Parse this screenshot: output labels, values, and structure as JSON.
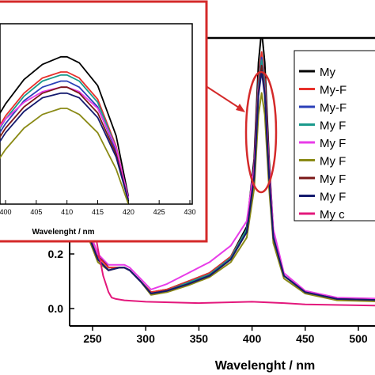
{
  "chart_data": [
    {
      "type": "line",
      "role": "main",
      "xlabel": "Wavelenght / nm",
      "ylabel": "",
      "xlim": [
        225,
        530
      ],
      "ylim": [
        -0.08,
        1.2
      ],
      "x_ticks": [
        250,
        300,
        350,
        400,
        450,
        500
      ],
      "y_ticks": [
        0.0,
        0.2
      ],
      "y_tick_labels": [
        "0.0",
        "0.2"
      ],
      "legend_position": "right",
      "series": [
        {
          "name": "My",
          "color": "#000000",
          "x": [
            225,
            235,
            245,
            255,
            265,
            275,
            280,
            285,
            295,
            305,
            320,
            340,
            360,
            380,
            395,
            402,
            406,
            409,
            412,
            416,
            420,
            430,
            450,
            480,
            530
          ],
          "y": [
            0.52,
            0.36,
            0.3,
            0.2,
            0.15,
            0.15,
            0.15,
            0.14,
            0.1,
            0.06,
            0.07,
            0.1,
            0.13,
            0.19,
            0.3,
            0.55,
            0.9,
            1.02,
            0.9,
            0.55,
            0.28,
            0.12,
            0.06,
            0.035,
            0.03
          ]
        },
        {
          "name": "My-F",
          "color": "#e8302b",
          "x": [
            225,
            235,
            245,
            255,
            265,
            275,
            280,
            285,
            295,
            305,
            320,
            340,
            360,
            380,
            395,
            402,
            406,
            409,
            412,
            416,
            420,
            430,
            450,
            480,
            530
          ],
          "y": [
            0.51,
            0.35,
            0.29,
            0.19,
            0.15,
            0.15,
            0.15,
            0.14,
            0.1,
            0.06,
            0.07,
            0.1,
            0.13,
            0.19,
            0.29,
            0.52,
            0.84,
            0.94,
            0.84,
            0.52,
            0.27,
            0.12,
            0.06,
            0.035,
            0.03
          ]
        },
        {
          "name": "My-F",
          "color": "#2a3fb8",
          "x": [
            225,
            235,
            245,
            255,
            265,
            275,
            280,
            285,
            295,
            305,
            320,
            340,
            360,
            380,
            395,
            402,
            406,
            409,
            412,
            416,
            420,
            430,
            450,
            480,
            530
          ],
          "y": [
            0.5,
            0.34,
            0.28,
            0.18,
            0.14,
            0.15,
            0.15,
            0.14,
            0.1,
            0.055,
            0.065,
            0.095,
            0.125,
            0.185,
            0.29,
            0.51,
            0.82,
            0.92,
            0.82,
            0.51,
            0.27,
            0.12,
            0.06,
            0.035,
            0.03
          ]
        },
        {
          "name": "My F",
          "color": "#1a9a8c",
          "x": [
            225,
            235,
            245,
            255,
            265,
            275,
            280,
            285,
            295,
            305,
            320,
            340,
            360,
            380,
            395,
            402,
            406,
            409,
            412,
            416,
            420,
            430,
            450,
            480,
            530
          ],
          "y": [
            0.5,
            0.34,
            0.28,
            0.18,
            0.14,
            0.15,
            0.15,
            0.14,
            0.1,
            0.055,
            0.065,
            0.095,
            0.125,
            0.185,
            0.29,
            0.5,
            0.81,
            0.91,
            0.81,
            0.5,
            0.27,
            0.12,
            0.06,
            0.035,
            0.03
          ]
        },
        {
          "name": "My F",
          "color": "#e83ce8",
          "x": [
            225,
            235,
            245,
            255,
            265,
            275,
            280,
            285,
            295,
            305,
            320,
            340,
            360,
            380,
            395,
            402,
            406,
            409,
            412,
            416,
            420,
            430,
            450,
            480,
            530
          ],
          "y": [
            0.52,
            0.36,
            0.3,
            0.2,
            0.16,
            0.16,
            0.16,
            0.15,
            0.11,
            0.07,
            0.09,
            0.13,
            0.17,
            0.23,
            0.32,
            0.52,
            0.8,
            0.88,
            0.8,
            0.52,
            0.29,
            0.13,
            0.065,
            0.04,
            0.035
          ]
        },
        {
          "name": "My F",
          "color": "#8a8a16",
          "x": [
            225,
            235,
            245,
            255,
            265,
            275,
            280,
            285,
            295,
            305,
            320,
            340,
            360,
            380,
            395,
            402,
            406,
            409,
            412,
            416,
            420,
            430,
            450,
            480,
            530
          ],
          "y": [
            0.49,
            0.33,
            0.27,
            0.17,
            0.14,
            0.15,
            0.15,
            0.14,
            0.1,
            0.05,
            0.06,
            0.085,
            0.115,
            0.17,
            0.26,
            0.44,
            0.71,
            0.79,
            0.71,
            0.44,
            0.24,
            0.11,
            0.055,
            0.03,
            0.025
          ]
        },
        {
          "name": "My F",
          "color": "#7a1717",
          "x": [
            225,
            235,
            245,
            255,
            265,
            275,
            280,
            285,
            295,
            305,
            320,
            340,
            360,
            380,
            395,
            402,
            406,
            409,
            412,
            416,
            420,
            430,
            450,
            480,
            530
          ],
          "y": [
            0.5,
            0.34,
            0.28,
            0.18,
            0.14,
            0.15,
            0.15,
            0.14,
            0.1,
            0.055,
            0.065,
            0.09,
            0.12,
            0.18,
            0.28,
            0.49,
            0.79,
            0.89,
            0.79,
            0.49,
            0.26,
            0.12,
            0.06,
            0.035,
            0.03
          ]
        },
        {
          "name": "My F",
          "color": "#141a6e",
          "x": [
            225,
            235,
            245,
            255,
            265,
            275,
            280,
            285,
            295,
            305,
            320,
            340,
            360,
            380,
            395,
            402,
            406,
            409,
            412,
            416,
            420,
            430,
            450,
            480,
            530
          ],
          "y": [
            0.5,
            0.34,
            0.28,
            0.18,
            0.14,
            0.15,
            0.15,
            0.14,
            0.1,
            0.055,
            0.065,
            0.09,
            0.12,
            0.18,
            0.28,
            0.48,
            0.78,
            0.87,
            0.78,
            0.48,
            0.26,
            0.12,
            0.06,
            0.035,
            0.03
          ]
        },
        {
          "name": "My c",
          "color": "#e3187c",
          "x": [
            225,
            235,
            245,
            255,
            260,
            265,
            268,
            272,
            280,
            300,
            350,
            400,
            430,
            450,
            530
          ],
          "y": [
            0.85,
            0.7,
            0.45,
            0.22,
            0.12,
            0.06,
            0.04,
            0.035,
            0.03,
            0.025,
            0.02,
            0.025,
            0.02,
            0.015,
            0.01
          ]
        }
      ]
    },
    {
      "type": "line",
      "role": "inset",
      "xlabel": "Wavelenght / nm",
      "ylabel": "",
      "xlim": [
        397,
        430
      ],
      "ylim": [
        0.0,
        1.0
      ],
      "x_ticks": [
        400,
        405,
        410,
        415,
        420,
        425,
        430
      ],
      "series": [
        {
          "color": "#000000",
          "x": [
            397,
            400,
            403,
            406,
            409,
            410,
            412,
            415,
            418,
            420
          ],
          "y": [
            0.46,
            0.66,
            0.82,
            0.92,
            0.97,
            0.97,
            0.93,
            0.78,
            0.45,
            0.05
          ]
        },
        {
          "color": "#e8302b",
          "x": [
            397,
            400,
            403,
            406,
            409,
            410,
            412,
            415,
            418,
            420
          ],
          "y": [
            0.38,
            0.58,
            0.73,
            0.83,
            0.87,
            0.87,
            0.83,
            0.69,
            0.38,
            0.03
          ]
        },
        {
          "color": "#1a9a8c",
          "x": [
            397,
            400,
            403,
            406,
            409,
            410,
            412,
            415,
            418,
            420
          ],
          "y": [
            0.36,
            0.56,
            0.71,
            0.81,
            0.85,
            0.85,
            0.81,
            0.67,
            0.37,
            0.03
          ]
        },
        {
          "color": "#2a3fb8",
          "x": [
            397,
            400,
            403,
            406,
            409,
            410,
            412,
            415,
            418,
            420
          ],
          "y": [
            0.34,
            0.53,
            0.68,
            0.77,
            0.81,
            0.81,
            0.77,
            0.64,
            0.35,
            0.02
          ]
        },
        {
          "color": "#e83ce8",
          "x": [
            397,
            400,
            403,
            406,
            409,
            410,
            412,
            415,
            418,
            420
          ],
          "y": [
            0.4,
            0.56,
            0.67,
            0.74,
            0.77,
            0.77,
            0.74,
            0.63,
            0.37,
            0.04
          ]
        },
        {
          "color": "#7a1717",
          "x": [
            397,
            400,
            403,
            406,
            409,
            410,
            412,
            415,
            418,
            420
          ],
          "y": [
            0.31,
            0.5,
            0.64,
            0.73,
            0.77,
            0.77,
            0.73,
            0.6,
            0.33,
            0.02
          ]
        },
        {
          "color": "#141a6e",
          "x": [
            397,
            400,
            403,
            406,
            409,
            410,
            412,
            415,
            418,
            420
          ],
          "y": [
            0.28,
            0.47,
            0.61,
            0.7,
            0.73,
            0.73,
            0.7,
            0.57,
            0.31,
            0.02
          ]
        },
        {
          "color": "#8a8a16",
          "x": [
            397,
            400,
            403,
            406,
            409,
            410,
            412,
            415,
            418,
            420
          ],
          "y": [
            0.18,
            0.36,
            0.5,
            0.59,
            0.63,
            0.63,
            0.59,
            0.47,
            0.23,
            0.0
          ]
        }
      ]
    }
  ],
  "highlight_color": "#d42a2a"
}
